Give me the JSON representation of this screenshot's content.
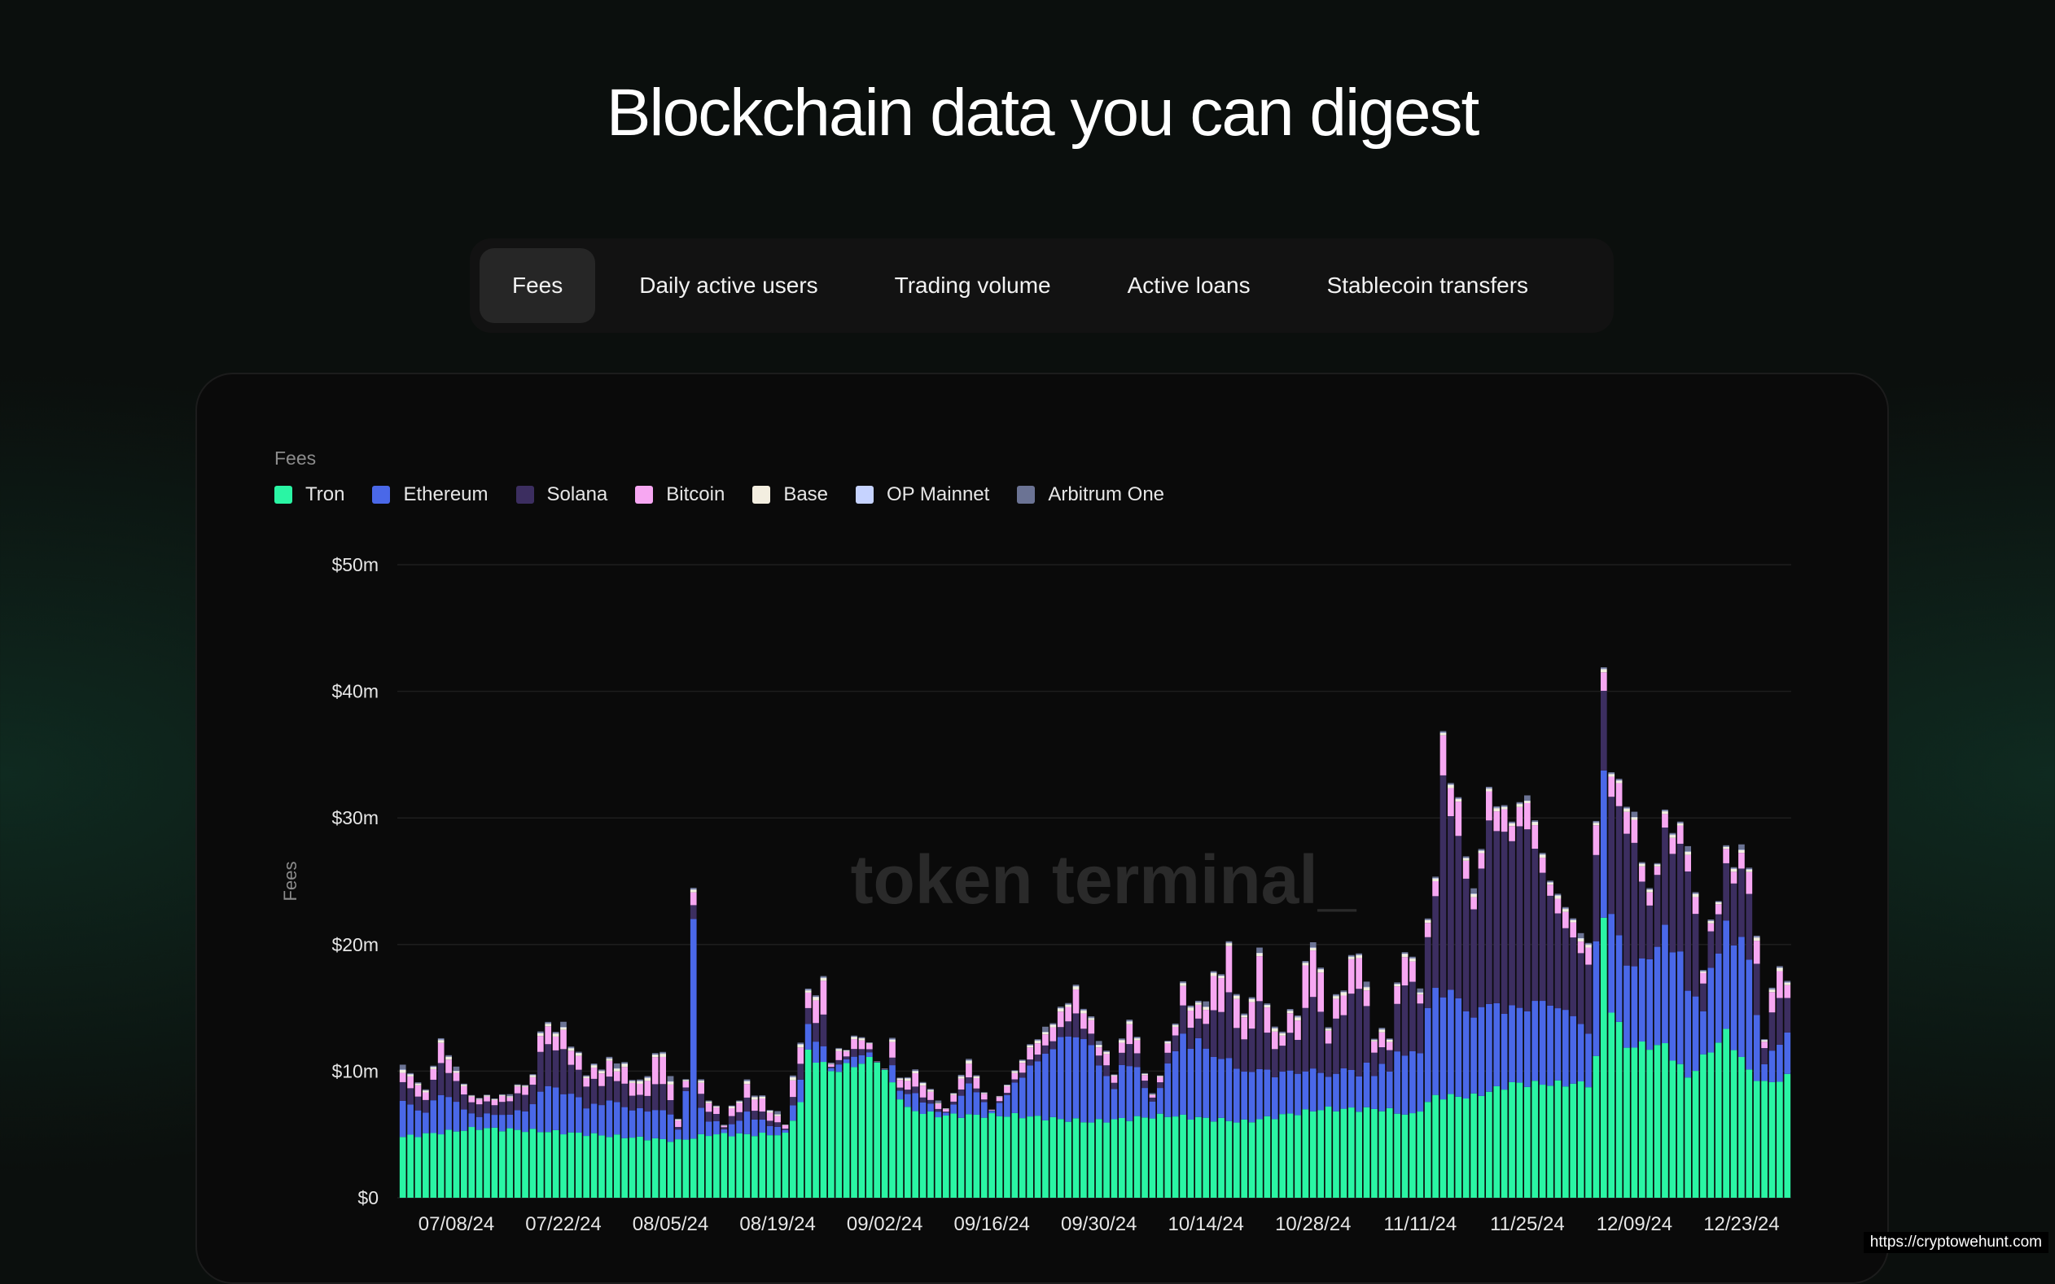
{
  "headline": "Blockchain data you can digest",
  "tabs": [
    {
      "label": "Fees",
      "active": true
    },
    {
      "label": "Daily active users",
      "active": false
    },
    {
      "label": "Trading volume",
      "active": false
    },
    {
      "label": "Active loans",
      "active": false
    },
    {
      "label": "Stablecoin transfers",
      "active": false
    }
  ],
  "watermark": "token terminal_",
  "footer_credit": "https://cryptowehunt.com",
  "chart_data": {
    "type": "bar",
    "stacked": true,
    "title": "Fees",
    "xlabel": "",
    "ylabel": "Fees",
    "ylim": [
      0,
      50
    ],
    "y_unit": "$m",
    "y_ticks": [
      "$0",
      "$10m",
      "$20m",
      "$30m",
      "$40m",
      "$50m"
    ],
    "y_tick_values": [
      0,
      10,
      20,
      30,
      40,
      50
    ],
    "x_tick_labels": [
      "07/08/24",
      "07/22/24",
      "08/05/24",
      "08/19/24",
      "09/02/24",
      "09/16/24",
      "09/30/24",
      "10/14/24",
      "10/28/24",
      "11/11/24",
      "11/25/24",
      "12/09/24",
      "12/23/24"
    ],
    "x_tick_indices": [
      7,
      21,
      35,
      49,
      63,
      77,
      91,
      105,
      119,
      133,
      147,
      161,
      175
    ],
    "grid": true,
    "legend_position": "top-left",
    "series": [
      {
        "name": "Tron",
        "color": "#2af5a4",
        "values": []
      },
      {
        "name": "Ethereum",
        "color": "#4a68e8",
        "values": []
      },
      {
        "name": "Solana",
        "color": "#3c2e60",
        "values": []
      },
      {
        "name": "Bitcoin",
        "color": "#f7a7f2",
        "values": []
      },
      {
        "name": "Base",
        "color": "#f3eee0",
        "values": []
      },
      {
        "name": "OP Mainnet",
        "color": "#c6d3ff",
        "values": []
      },
      {
        "name": "Arbitrum One",
        "color": "#6b7394",
        "values": []
      }
    ],
    "anchors": {
      "total": [
        [
          0,
          10.5
        ],
        [
          3,
          8.5
        ],
        [
          5,
          12.5
        ],
        [
          9,
          8
        ],
        [
          13,
          8
        ],
        [
          17,
          9.5
        ],
        [
          18,
          13.5
        ],
        [
          21,
          13.5
        ],
        [
          24,
          10
        ],
        [
          28,
          11
        ],
        [
          31,
          9
        ],
        [
          34,
          12
        ],
        [
          36,
          6.5
        ],
        [
          37,
          9
        ],
        [
          38,
          25.5
        ],
        [
          39,
          9
        ],
        [
          42,
          6
        ],
        [
          45,
          9
        ],
        [
          50,
          6
        ],
        [
          53,
          16
        ],
        [
          55,
          17
        ],
        [
          56,
          11
        ],
        [
          60,
          13
        ],
        [
          64,
          9
        ],
        [
          67,
          10
        ],
        [
          71,
          7
        ],
        [
          74,
          11
        ],
        [
          77,
          7
        ],
        [
          82,
          12
        ],
        [
          85,
          14
        ],
        [
          88,
          16.5
        ],
        [
          90,
          14
        ],
        [
          93,
          10
        ],
        [
          95,
          14.5
        ],
        [
          98,
          8
        ],
        [
          100,
          12
        ],
        [
          102,
          16.5
        ],
        [
          104,
          15
        ],
        [
          108,
          19.5
        ],
        [
          110,
          14
        ],
        [
          112,
          19
        ],
        [
          114,
          13
        ],
        [
          117,
          15
        ],
        [
          119,
          21
        ],
        [
          121,
          14
        ],
        [
          123,
          17
        ],
        [
          125,
          20
        ],
        [
          127,
          13
        ],
        [
          129,
          13
        ],
        [
          131,
          20
        ],
        [
          133,
          17
        ],
        [
          135,
          26
        ],
        [
          136,
          36
        ],
        [
          138,
          31
        ],
        [
          140,
          24
        ],
        [
          142,
          32
        ],
        [
          145,
          30
        ],
        [
          147,
          32
        ],
        [
          150,
          25
        ],
        [
          152,
          23
        ],
        [
          155,
          20
        ],
        [
          156,
          30
        ],
        [
          157,
          41.5
        ],
        [
          158,
          34
        ],
        [
          161,
          30
        ],
        [
          163,
          24
        ],
        [
          165,
          30
        ],
        [
          168,
          28.5
        ],
        [
          170,
          18.5
        ],
        [
          173,
          27
        ],
        [
          176,
          27
        ],
        [
          178,
          13
        ],
        [
          180,
          19
        ],
        [
          181,
          16.5
        ]
      ],
      "tron": [
        [
          0,
          4.8
        ],
        [
          10,
          5.5
        ],
        [
          20,
          5.2
        ],
        [
          36,
          4.5
        ],
        [
          40,
          5
        ],
        [
          50,
          5
        ],
        [
          52,
          7.5
        ],
        [
          53,
          11.5
        ],
        [
          56,
          10
        ],
        [
          62,
          11
        ],
        [
          66,
          7
        ],
        [
          70,
          6.5
        ],
        [
          80,
          6.5
        ],
        [
          90,
          6
        ],
        [
          100,
          6.5
        ],
        [
          110,
          6
        ],
        [
          120,
          7
        ],
        [
          128,
          7
        ],
        [
          132,
          6.5
        ],
        [
          135,
          8
        ],
        [
          140,
          8
        ],
        [
          145,
          9
        ],
        [
          150,
          9
        ],
        [
          155,
          9
        ],
        [
          156,
          11
        ],
        [
          157,
          22
        ],
        [
          158,
          15
        ],
        [
          160,
          12
        ],
        [
          165,
          12
        ],
        [
          168,
          9.5
        ],
        [
          170,
          11
        ],
        [
          173,
          13
        ],
        [
          176,
          10
        ],
        [
          178,
          9
        ],
        [
          181,
          9.5
        ]
      ],
      "eth": [
        [
          0,
          3
        ],
        [
          10,
          3
        ],
        [
          20,
          3.5
        ],
        [
          36,
          2
        ],
        [
          38,
          17
        ],
        [
          39,
          2.5
        ],
        [
          50,
          1
        ],
        [
          53,
          2
        ],
        [
          56,
          1
        ],
        [
          60,
          1
        ],
        [
          66,
          1.5
        ],
        [
          70,
          1
        ],
        [
          80,
          4.5
        ],
        [
          88,
          7
        ],
        [
          95,
          4.5
        ],
        [
          100,
          7
        ],
        [
          110,
          4
        ],
        [
          120,
          3
        ],
        [
          125,
          3
        ],
        [
          128,
          4
        ],
        [
          132,
          5
        ],
        [
          135,
          9
        ],
        [
          140,
          6.5
        ],
        [
          142,
          7
        ],
        [
          145,
          6
        ],
        [
          150,
          6.5
        ],
        [
          155,
          4.5
        ],
        [
          157,
          12
        ],
        [
          158,
          8
        ],
        [
          160,
          6
        ],
        [
          163,
          8
        ],
        [
          165,
          10.5
        ],
        [
          168,
          7
        ],
        [
          170,
          5
        ],
        [
          172,
          11
        ],
        [
          174,
          9
        ],
        [
          176,
          9
        ],
        [
          178,
          2
        ],
        [
          181,
          3.5
        ]
      ],
      "sol": [
        [
          0,
          1.5
        ],
        [
          10,
          2.5
        ],
        [
          20,
          3
        ],
        [
          36,
          0.5
        ],
        [
          40,
          1.5
        ],
        [
          50,
          0.5
        ],
        [
          53,
          1
        ],
        [
          56,
          0.5
        ],
        [
          60,
          0.8
        ],
        [
          66,
          0.5
        ],
        [
          70,
          0.5
        ],
        [
          80,
          0.5
        ],
        [
          90,
          1
        ],
        [
          100,
          1.5
        ],
        [
          110,
          2
        ],
        [
          120,
          2.5
        ],
        [
          125,
          5
        ],
        [
          128,
          1.5
        ],
        [
          132,
          5
        ],
        [
          135,
          7
        ],
        [
          136,
          14
        ],
        [
          138,
          12
        ],
        [
          140,
          8
        ],
        [
          142,
          14
        ],
        [
          145,
          13
        ],
        [
          147,
          14
        ],
        [
          150,
          8
        ],
        [
          152,
          7
        ],
        [
          155,
          5
        ],
        [
          157,
          6
        ],
        [
          158,
          9
        ],
        [
          161,
          9
        ],
        [
          163,
          5
        ],
        [
          165,
          8
        ],
        [
          168,
          9
        ],
        [
          170,
          3
        ],
        [
          172,
          5
        ],
        [
          174,
          5
        ],
        [
          176,
          5
        ],
        [
          178,
          2
        ],
        [
          181,
          3
        ]
      ]
    }
  }
}
